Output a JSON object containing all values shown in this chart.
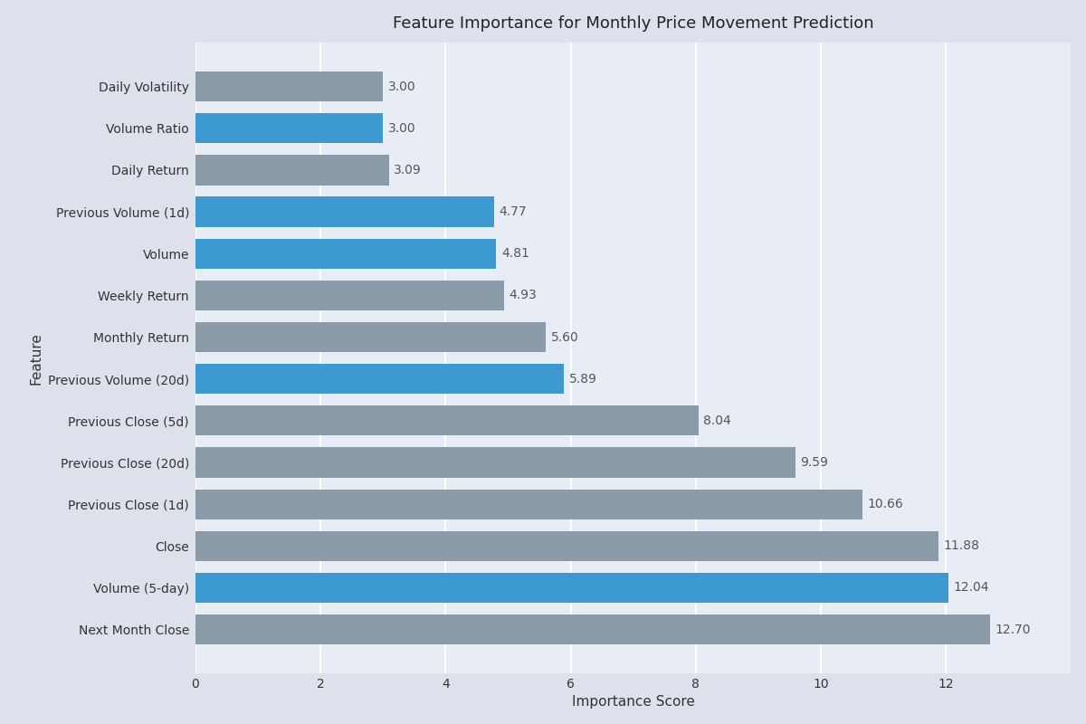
{
  "title": "Feature Importance for Monthly Price Movement Prediction",
  "xlabel": "Importance Score",
  "ylabel": "Feature",
  "features": [
    "Next Month Close",
    "Volume (5-day)",
    "Close",
    "Previous Close (1d)",
    "Previous Close (20d)",
    "Previous Close (5d)",
    "Previous Volume (20d)",
    "Monthly Return",
    "Weekly Return",
    "Volume",
    "Previous Volume (1d)",
    "Daily Return",
    "Volume Ratio",
    "Daily Volatility"
  ],
  "values": [
    12.7,
    12.04,
    11.88,
    10.66,
    9.59,
    8.04,
    5.89,
    5.6,
    4.93,
    4.81,
    4.77,
    3.09,
    3.0,
    3.0
  ],
  "is_volume": [
    false,
    true,
    false,
    false,
    false,
    false,
    true,
    false,
    false,
    true,
    true,
    false,
    true,
    false
  ],
  "color_volume": "#3d9ad1",
  "color_price": "#8a9baa",
  "figure_background": "#dde1ec",
  "axes_background": "#e8ecf5",
  "grid_color": "#ffffff",
  "bar_height": 0.72,
  "xlim": [
    0,
    14
  ],
  "xticks": [
    0,
    2,
    4,
    6,
    8,
    10,
    12
  ],
  "label_fontsize": 10,
  "title_fontsize": 13,
  "value_label_color": "#555555",
  "ylabel_fontsize": 11,
  "xlabel_fontsize": 11
}
